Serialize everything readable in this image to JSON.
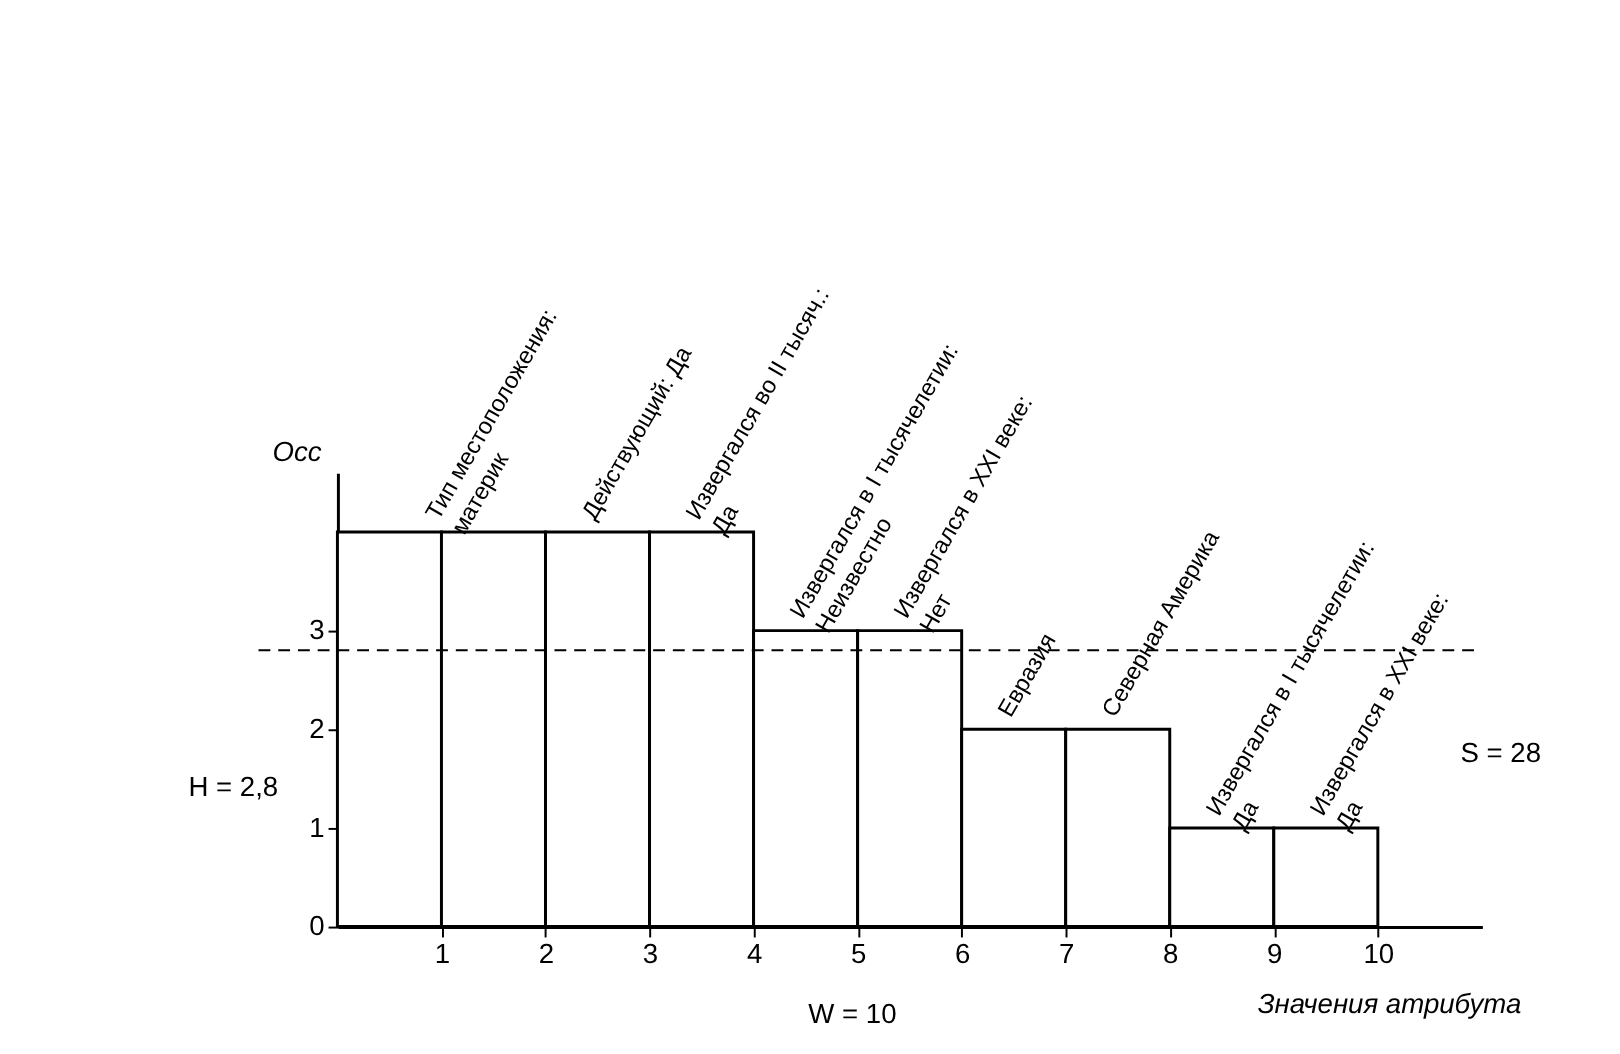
{
  "chart_data": {
    "type": "histogram",
    "bins": [
      0,
      1,
      2,
      3,
      4,
      5,
      6,
      7,
      8,
      9,
      10
    ],
    "values": [
      4,
      4,
      4,
      4,
      3,
      3,
      2,
      2,
      1,
      1
    ],
    "color": "#ffffff",
    "xlim": [
      0,
      11
    ],
    "ylim": [
      0,
      4.6
    ],
    "xticks": [
      1,
      2,
      3,
      4,
      5,
      6,
      7,
      8,
      9,
      10
    ],
    "yticks": [
      0,
      1,
      2,
      3
    ],
    "xlabel": "Значения атрибута",
    "ylabel": "Occ",
    "grid": false,
    "ref_lines": [
      {
        "axis": "y",
        "value": 2.8,
        "label": "H = 2,8",
        "line_style": "dashed",
        "color": "#000000"
      }
    ],
    "annotations": [
      {
        "text": "Тип местоположения:\nматерик",
        "x": 1,
        "y": 4
      },
      {
        "text": "Действующий:  Да",
        "x": 2.5,
        "y": 4
      },
      {
        "text": "Извергался во II тысяч.:\nДа",
        "x": 3.5,
        "y": 4
      },
      {
        "text": "Извергался в I тысячелетии:\nНеизвестно",
        "x": 4.5,
        "y": 3
      },
      {
        "text": "Извергался в XXI веке:\nНет",
        "x": 5.5,
        "y": 3
      },
      {
        "text": "Евразия",
        "x": 6.5,
        "y": 2
      },
      {
        "text": "Северная Америка",
        "x": 7.5,
        "y": 2
      },
      {
        "text": "Извергался в I тысячелетии:\nДа",
        "x": 8.5,
        "y": 1
      },
      {
        "text": "Извергался в XXI веке:\nДа",
        "x": 9.5,
        "y": 1
      },
      "S = 28",
      "W = 10"
    ]
  }
}
